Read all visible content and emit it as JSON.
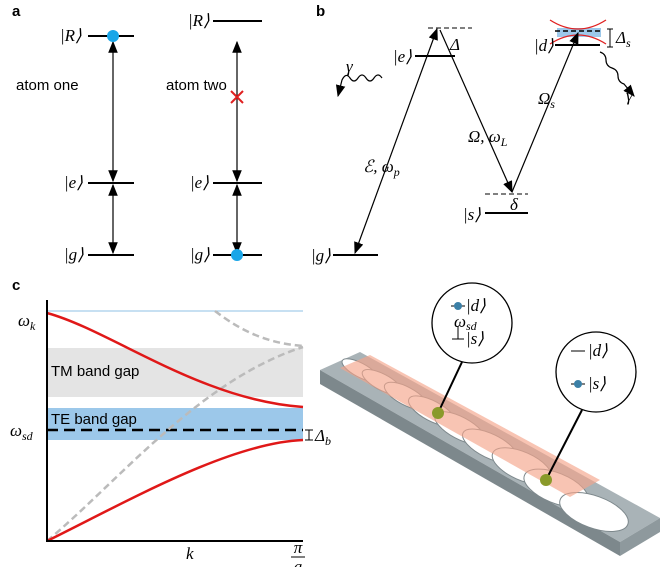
{
  "panel_a": {
    "label": "a",
    "atom_one": {
      "name": "atom one",
      "levels": [
        "|R⟩",
        "|e⟩",
        "|g⟩"
      ]
    },
    "atom_two": {
      "name": "atom two",
      "levels": [
        "|R⟩",
        "|e⟩",
        "|g⟩"
      ]
    }
  },
  "panel_b": {
    "label": "b",
    "levels": {
      "e": "|e⟩",
      "d": "|d⟩",
      "s": "|s⟩",
      "g": "|g⟩"
    },
    "detunings": {
      "delta_e": "Δ",
      "delta_s": {
        "main": "Δ",
        "sub": "s"
      },
      "delta": "δ"
    },
    "decay": [
      "γ",
      "γ"
    ],
    "fields": {
      "probe": {
        "main": "ℰ, ω",
        "sub": "p"
      },
      "control": {
        "main": "Ω, ω",
        "sub": "L"
      },
      "coupling": {
        "main": "Ω",
        "sub": "s"
      }
    }
  },
  "panel_c": {
    "label": "c",
    "omega_k": {
      "main": "ω",
      "sub": "k"
    },
    "omega_sd": {
      "main": "ω",
      "sub": "sd"
    },
    "tm_gap": "TM band gap",
    "te_gap": "TE band gap",
    "delta_b": {
      "main": "Δ",
      "sub": "b"
    },
    "x_label": "k",
    "x_end": {
      "num": "π",
      "den": "a"
    },
    "callouts": [
      {
        "upper": "|d⟩",
        "middle": {
          "main": "ω",
          "sub": "sd"
        },
        "lower": "|s⟩"
      },
      {
        "upper": "|d⟩",
        "lower": "|s⟩"
      }
    ]
  }
}
